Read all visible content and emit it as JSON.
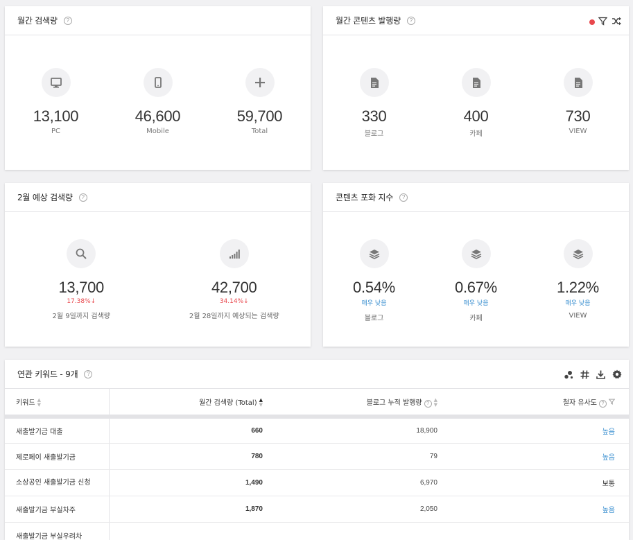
{
  "monthly_search": {
    "title": "월간 검색량",
    "stats": [
      {
        "icon": "monitor-icon",
        "value": "13,100",
        "label": "PC"
      },
      {
        "icon": "mobile-icon",
        "value": "46,600",
        "label": "Mobile"
      },
      {
        "icon": "plus-icon",
        "value": "59,700",
        "label": "Total"
      }
    ]
  },
  "monthly_content": {
    "title": "월간 콘텐츠 발행량",
    "stats": [
      {
        "icon": "document-icon",
        "value": "330",
        "label": "블로그"
      },
      {
        "icon": "document-icon",
        "value": "400",
        "label": "카페"
      },
      {
        "icon": "document-icon",
        "value": "730",
        "label": "VIEW"
      }
    ]
  },
  "forecast": {
    "title": "2월 예상 검색량",
    "stats": [
      {
        "icon": "search-icon",
        "value": "13,700",
        "delta": "17.38%↓",
        "label": "2월 9일까지 검색량"
      },
      {
        "icon": "signal-bars-icon",
        "value": "42,700",
        "delta": "34.14%↓",
        "label": "2월 28일까지 예상되는 검색량"
      }
    ]
  },
  "saturation": {
    "title": "콘텐츠 포화 지수",
    "stats": [
      {
        "icon": "layers-icon",
        "value": "0.54%",
        "level": "매우 낮음",
        "label": "블로그"
      },
      {
        "icon": "layers-icon",
        "value": "0.67%",
        "level": "매우 낮음",
        "label": "카페"
      },
      {
        "icon": "layers-icon",
        "value": "1.22%",
        "level": "매우 낮음",
        "label": "VIEW"
      }
    ]
  },
  "keywords": {
    "title": "연관 키워드 - 9개",
    "columns": {
      "keyword": "키워드",
      "monthly": "월간 검색량 (Total)",
      "blog": "블로그 누적 발행량",
      "similarity": "철자 유사도"
    },
    "rows": [
      {
        "keyword": "새출발기금 대출",
        "monthly": "660",
        "blog": "18,900",
        "similarity": "높음"
      },
      {
        "keyword": "제로페이 새출발기금",
        "monthly": "780",
        "blog": "79",
        "similarity": "높음"
      },
      {
        "keyword": "소상공인 새출발기금 신청",
        "monthly": "1,490",
        "blog": "6,970",
        "similarity": "보통"
      },
      {
        "keyword": "새출발기금 부실차주",
        "monthly": "1,870",
        "blog": "2,050",
        "similarity": "높음"
      },
      {
        "keyword": "새출발기금 부실우려차",
        "monthly": "",
        "blog": "",
        "similarity": ""
      }
    ]
  },
  "colors": {
    "accent_blue": "#3a8fd0",
    "down_red": "#e8484d"
  }
}
